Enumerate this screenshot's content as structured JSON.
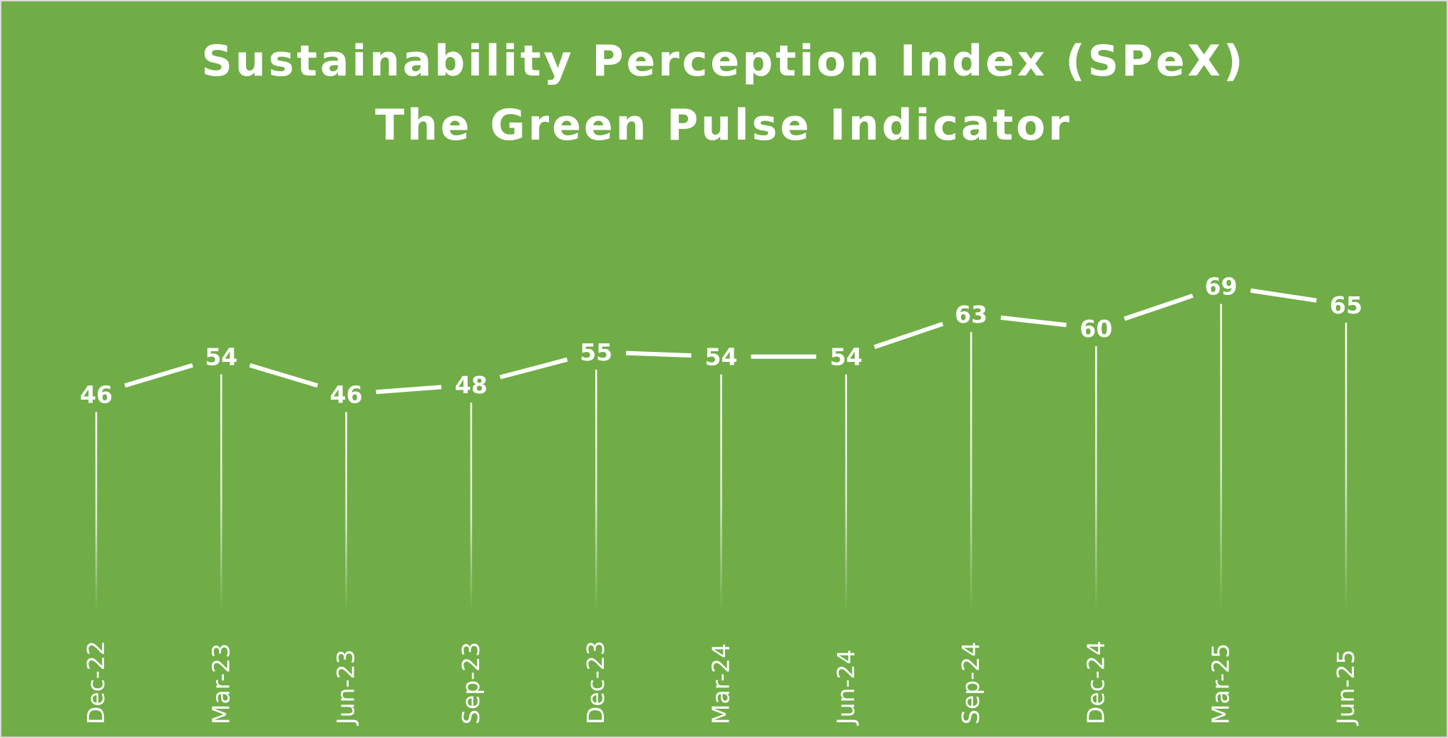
{
  "chart_data": {
    "type": "line",
    "title": "Sustainability Perception Index (SPeX)",
    "subtitle": "The Green Pulse Indicator",
    "categories": [
      "Dec-22",
      "Mar-23",
      "Jun-23",
      "Sep-23",
      "Dec-23",
      "Mar-24",
      "Jun-24",
      "Sep-24",
      "Dec-24",
      "Mar-25",
      "Jun-25"
    ],
    "series": [
      {
        "name": "SPeX",
        "values": [
          46,
          54,
          46,
          48,
          55,
          54,
          54,
          63,
          60,
          69,
          65
        ]
      }
    ],
    "xlabel": "",
    "ylabel": "",
    "ylim": [
      0,
      85
    ],
    "grid": false,
    "legend": "none",
    "drop_lines": true,
    "data_labels": true
  },
  "colors": {
    "background": "#70ad47",
    "line": "#ffffff",
    "text": "#ffffff",
    "border": "#d9d9d9"
  }
}
